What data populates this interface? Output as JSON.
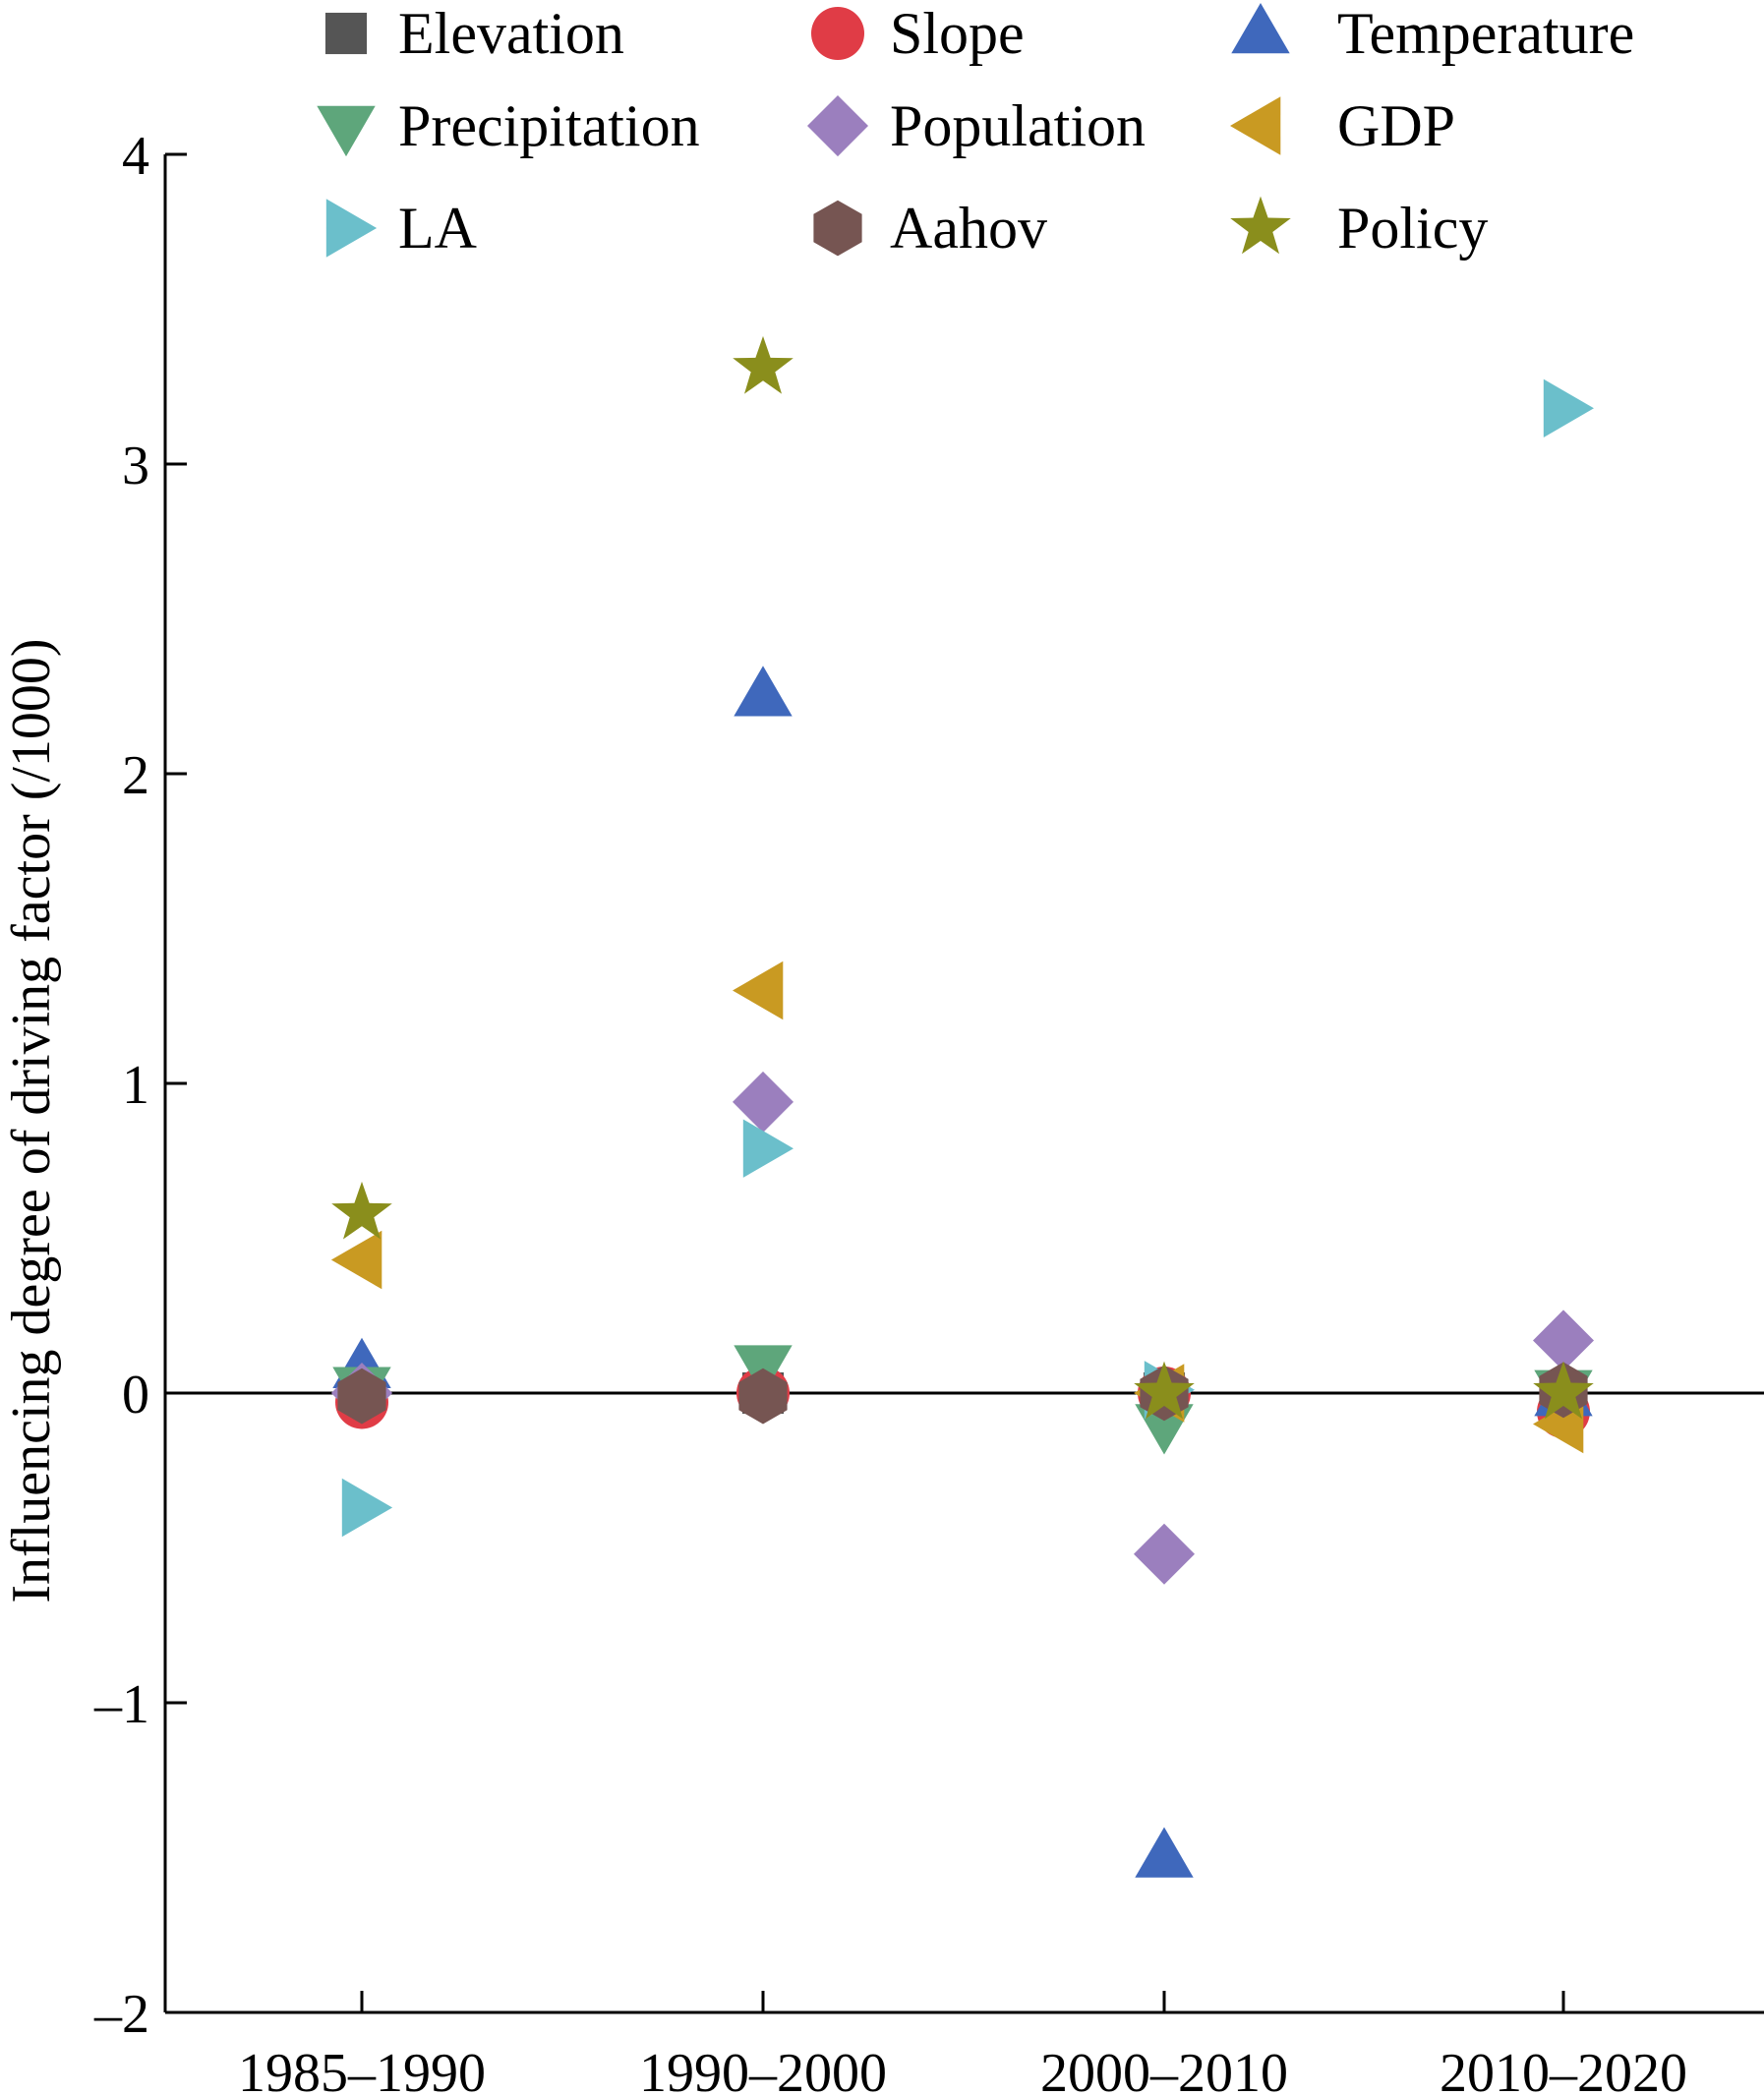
{
  "chart_data": {
    "type": "scatter",
    "title": "",
    "xlabel": "",
    "ylabel": "Influencing degree of driving factor (/1000)",
    "categories": [
      "1985–1990",
      "1990–2000",
      "2000–2010",
      "2010–2020"
    ],
    "ylim": [
      -2,
      4
    ],
    "yticks": [
      -2,
      -1,
      0,
      1,
      2,
      3,
      4
    ],
    "ytick_labels": [
      "–2",
      "–1",
      "0",
      "1",
      "2",
      "3",
      "4"
    ],
    "grid": false,
    "zero_line": true,
    "legend_position": "top",
    "series": [
      {
        "name": "Elevation",
        "marker": "square",
        "color": "#555555",
        "values": [
          0.0,
          0.0,
          0.0,
          0.0
        ]
      },
      {
        "name": "Slope",
        "marker": "circle",
        "color": "#e03c46",
        "values": [
          -0.03,
          0.0,
          0.0,
          -0.06
        ]
      },
      {
        "name": "Temperature",
        "marker": "triangle-up",
        "color": "#3f68bc",
        "values": [
          0.08,
          2.25,
          -1.5,
          -0.01
        ]
      },
      {
        "name": "Precipitation",
        "marker": "triangle-down",
        "color": "#5ea67b",
        "values": [
          0.02,
          0.09,
          -0.1,
          0.01
        ]
      },
      {
        "name": "Population",
        "marker": "diamond",
        "color": "#9b7fbe",
        "values": [
          0.0,
          0.94,
          -0.52,
          0.17
        ]
      },
      {
        "name": "GDP",
        "marker": "triangle-left",
        "color": "#c99a22",
        "values": [
          0.43,
          1.3,
          0.0,
          -0.1
        ]
      },
      {
        "name": "LA",
        "marker": "triangle-right",
        "color": "#6bbfcb",
        "values": [
          -0.37,
          0.79,
          0.01,
          3.18
        ]
      },
      {
        "name": "Aahov",
        "marker": "hexagon",
        "color": "#765552",
        "values": [
          -0.01,
          -0.01,
          0.0,
          0.01
        ]
      },
      {
        "name": "Policy",
        "marker": "star",
        "color": "#8a8e1c",
        "values": [
          0.58,
          3.31,
          0.0,
          0.0
        ]
      }
    ]
  }
}
